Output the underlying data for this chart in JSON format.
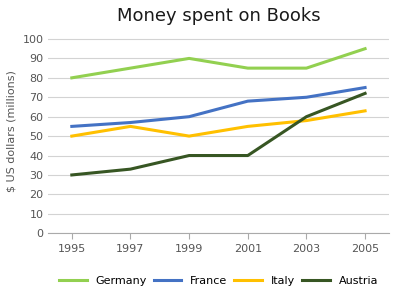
{
  "title": "Money spent on Books",
  "ylabel": "$ US dollars (millions)",
  "years": [
    1995,
    1997,
    1999,
    2001,
    2003,
    2005
  ],
  "series": {
    "Germany": {
      "values": [
        80,
        85,
        90,
        85,
        85,
        95
      ],
      "color": "#92d050"
    },
    "France": {
      "values": [
        55,
        57,
        60,
        68,
        70,
        75
      ],
      "color": "#4472c4"
    },
    "Italy": {
      "values": [
        50,
        55,
        50,
        55,
        58,
        63
      ],
      "color": "#ffc000"
    },
    "Austria": {
      "values": [
        30,
        33,
        40,
        40,
        60,
        72
      ],
      "color": "#375623"
    }
  },
  "ylim": [
    0,
    105
  ],
  "yticks": [
    0,
    10,
    20,
    30,
    40,
    50,
    60,
    70,
    80,
    90,
    100
  ],
  "legend_order": [
    "Germany",
    "France",
    "Italy",
    "Austria"
  ],
  "background_color": "#ffffff",
  "grid_color": "#d3d3d3",
  "title_fontsize": 13,
  "label_fontsize": 8,
  "tick_fontsize": 8,
  "legend_fontsize": 8,
  "linewidth": 2.2
}
